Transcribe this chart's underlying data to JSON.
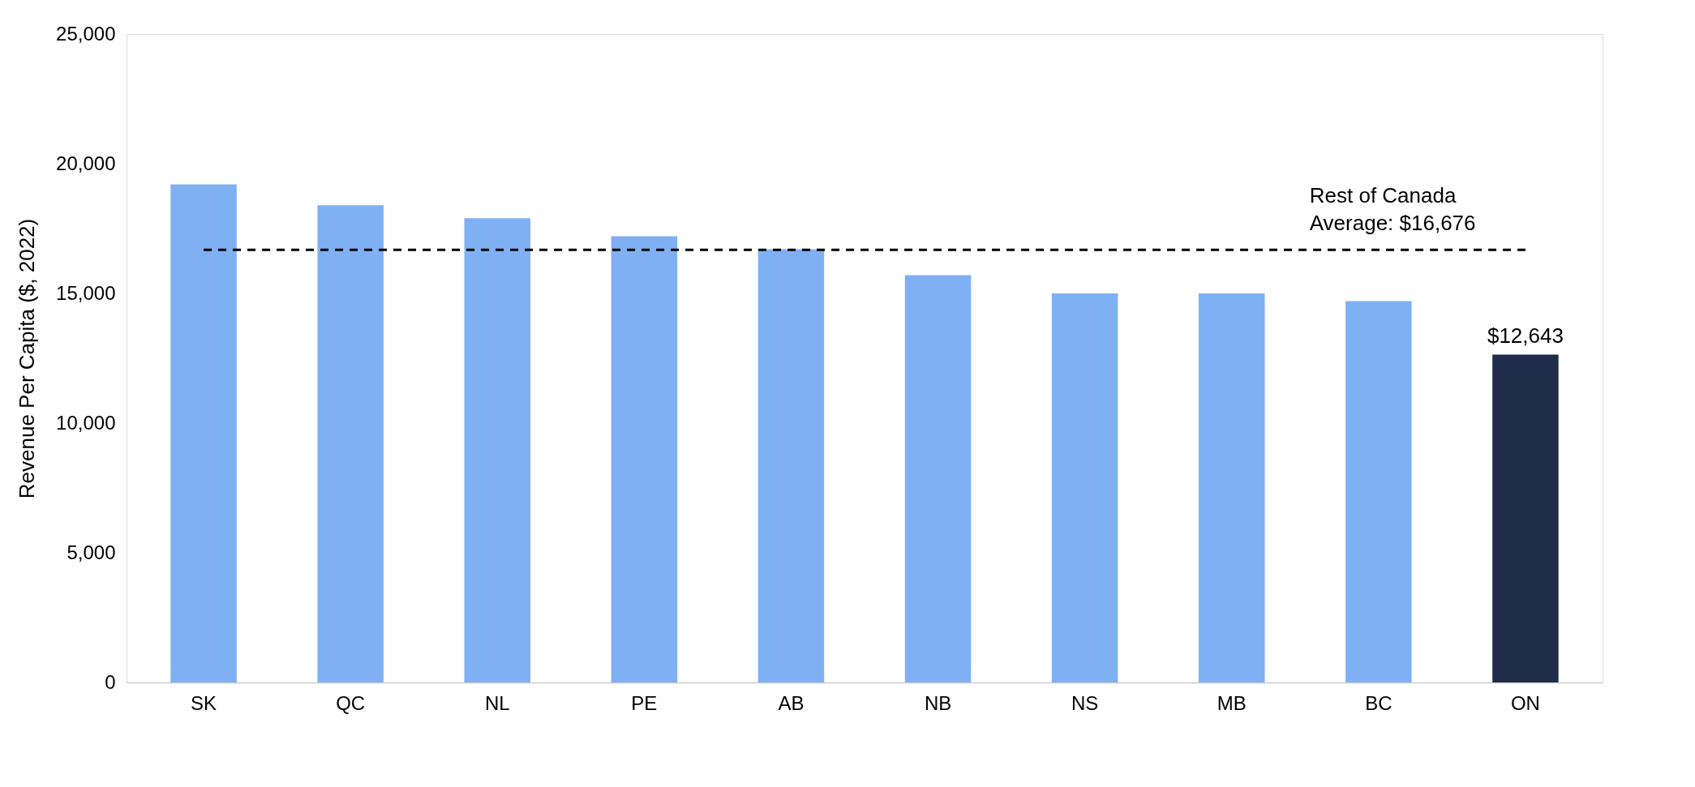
{
  "chart_data": {
    "type": "bar",
    "ylabel": "Revenue Per Capita ($, 2022)",
    "categories": [
      "SK",
      "QC",
      "NL",
      "PE",
      "AB",
      "NB",
      "NS",
      "MB",
      "BC",
      "ON"
    ],
    "values": [
      19200,
      18400,
      17900,
      17200,
      16700,
      15700,
      15000,
      15000,
      14700,
      12643
    ],
    "colors": [
      "#7fb0f4",
      "#7fb0f4",
      "#7fb0f4",
      "#7fb0f4",
      "#7fb0f4",
      "#7fb0f4",
      "#7fb0f4",
      "#7fb0f4",
      "#7fb0f4",
      "#1f2d4a"
    ],
    "value_labels": [
      null,
      null,
      null,
      null,
      null,
      null,
      null,
      null,
      null,
      "$12,643"
    ],
    "ylim": [
      0,
      25000
    ],
    "yticks": [
      0,
      {
        "value": 5000,
        "label": "5,000"
      },
      {
        "value": 10000,
        "label": "10,000"
      },
      {
        "value": 15000,
        "label": "15,000"
      },
      {
        "value": 20000,
        "label": "20,000"
      },
      {
        "value": 25000,
        "label": "25,000"
      }
    ],
    "ref_lines": [
      {
        "axis": "y",
        "value": 16676,
        "label": "Rest of Canada\nAverage: $16,676",
        "color": "#000000",
        "line_style": "dashed"
      }
    ],
    "grid": false
  }
}
